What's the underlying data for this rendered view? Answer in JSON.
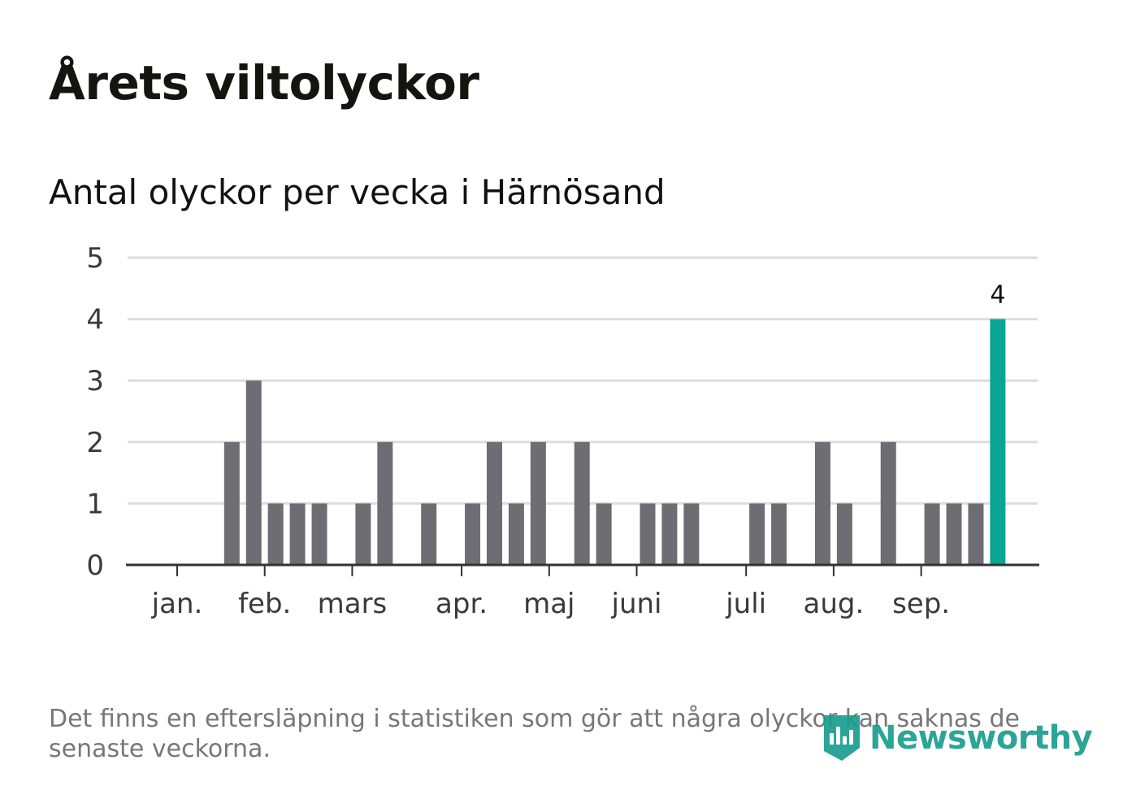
{
  "title": "Årets viltolyckor",
  "subtitle": "Antal olyckor per vecka i Härnösand",
  "note": "Det finns en eftersläpning i statistiken som gör att några olyckor kan saknas de senaste veckorna.",
  "brand": {
    "name": "Newsworthy",
    "icon": "newsworthy-logo-icon",
    "color": "#1a9e8f"
  },
  "colors": {
    "bar": "#6e6d73",
    "highlight": "#0aa596",
    "grid": "#dddddd",
    "axis": "#333333"
  },
  "chart_data": {
    "type": "bar",
    "title": "Antal olyckor per vecka i Härnösand",
    "xlabel": "",
    "ylabel": "",
    "ylim": [
      0,
      5
    ],
    "yticks": [
      0,
      1,
      2,
      3,
      4,
      5
    ],
    "grid": true,
    "weeks": [
      1,
      2,
      3,
      4,
      5,
      6,
      7,
      8,
      9,
      10,
      11,
      12,
      13,
      14,
      15,
      16,
      17,
      18,
      19,
      20,
      21,
      22,
      23,
      24,
      25,
      26,
      27,
      28,
      29,
      30,
      31,
      32,
      33,
      34,
      35,
      36,
      37,
      38,
      39,
      40
    ],
    "values": [
      0,
      0,
      0,
      0,
      2,
      3,
      1,
      1,
      1,
      0,
      1,
      2,
      0,
      1,
      0,
      1,
      2,
      1,
      2,
      0,
      2,
      1,
      0,
      1,
      1,
      1,
      0,
      0,
      1,
      1,
      0,
      2,
      1,
      0,
      2,
      0,
      1,
      1,
      1,
      4
    ],
    "highlight_index": 39,
    "highlight_label": "4",
    "month_ticks": [
      {
        "label": "jan.",
        "week": 2.5
      },
      {
        "label": "feb.",
        "week": 6.5
      },
      {
        "label": "mars",
        "week": 10.5
      },
      {
        "label": "apr.",
        "week": 15.5
      },
      {
        "label": "maj",
        "week": 19.5
      },
      {
        "label": "juni",
        "week": 23.5
      },
      {
        "label": "juli",
        "week": 28.5
      },
      {
        "label": "aug.",
        "week": 32.5
      },
      {
        "label": "sep.",
        "week": 36.5
      }
    ]
  }
}
